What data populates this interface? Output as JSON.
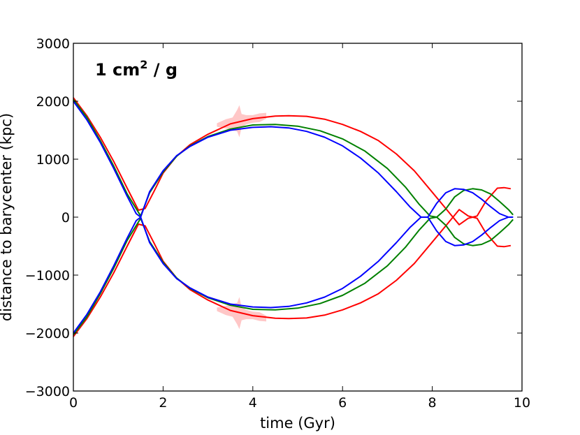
{
  "chart_data": {
    "type": "line",
    "annotation": {
      "base": "1 cm",
      "exponent": "2",
      "suffix": " / g"
    },
    "xlabel": "time (Gyr)",
    "ylabel": "distance to barycenter (kpc)",
    "xlim": [
      0,
      10
    ],
    "ylim": [
      -3000,
      3000
    ],
    "xticks": [
      0,
      2,
      4,
      6,
      8,
      10
    ],
    "xtick_labels": [
      "0",
      "2",
      "4",
      "6",
      "8",
      "10"
    ],
    "yticks": [
      -3000,
      -2000,
      -1000,
      0,
      1000,
      2000,
      3000
    ],
    "ytick_labels": [
      "−3000",
      "−2000",
      "−1000",
      "0",
      "1000",
      "2000",
      "3000"
    ],
    "grid": false,
    "series": [
      {
        "color": "#ff0000",
        "upper": {
          "x": [
            0,
            0.3,
            0.6,
            0.9,
            1.2,
            1.45,
            1.6,
            1.8,
            2.0,
            2.3,
            2.6,
            3.0,
            3.5,
            4.0,
            4.5,
            4.8,
            5.2,
            5.6,
            6.0,
            6.4,
            6.8,
            7.2,
            7.6,
            8.0,
            8.3,
            8.6,
            8.8,
            8.9,
            9.0,
            9.2,
            9.45,
            9.6,
            9.75
          ],
          "y": [
            2060,
            1750,
            1380,
            960,
            500,
            120,
            150,
            450,
            760,
            1050,
            1250,
            1430,
            1610,
            1700,
            1745,
            1750,
            1740,
            1690,
            1600,
            1480,
            1320,
            1090,
            800,
            430,
            150,
            -130,
            -20,
            0,
            20,
            280,
            500,
            510,
            490
          ]
        },
        "lower": {
          "x": [
            0,
            0.3,
            0.6,
            0.9,
            1.2,
            1.45,
            1.6,
            1.8,
            2.0,
            2.3,
            2.6,
            3.0,
            3.5,
            4.0,
            4.5,
            4.8,
            5.2,
            5.6,
            6.0,
            6.4,
            6.8,
            7.2,
            7.6,
            8.0,
            8.3,
            8.6,
            8.8,
            8.9,
            9.0,
            9.2,
            9.45,
            9.6,
            9.75
          ],
          "y": [
            -2060,
            -1750,
            -1380,
            -960,
            -500,
            -120,
            -150,
            -450,
            -760,
            -1050,
            -1250,
            -1430,
            -1610,
            -1700,
            -1745,
            -1750,
            -1740,
            -1690,
            -1600,
            -1480,
            -1320,
            -1090,
            -800,
            -430,
            -150,
            130,
            20,
            0,
            -20,
            -280,
            -500,
            -510,
            -490
          ]
        }
      },
      {
        "color": "#008000",
        "upper": {
          "x": [
            0,
            0.3,
            0.6,
            0.9,
            1.2,
            1.5,
            1.7,
            2.0,
            2.3,
            2.6,
            3.0,
            3.5,
            4.0,
            4.5,
            5.0,
            5.5,
            6.0,
            6.5,
            7.0,
            7.4,
            7.7,
            7.95,
            8.1,
            8.3,
            8.5,
            8.7,
            8.9,
            9.1,
            9.3,
            9.5,
            9.7,
            9.8
          ],
          "y": [
            2030,
            1720,
            1320,
            880,
            400,
            20,
            420,
            780,
            1050,
            1230,
            1390,
            1520,
            1590,
            1600,
            1570,
            1490,
            1350,
            1140,
            840,
            520,
            230,
            20,
            0,
            140,
            350,
            460,
            490,
            470,
            400,
            270,
            130,
            40
          ]
        },
        "lower": {
          "x": [
            0,
            0.3,
            0.6,
            0.9,
            1.2,
            1.5,
            1.7,
            2.0,
            2.3,
            2.6,
            3.0,
            3.5,
            4.0,
            4.5,
            5.0,
            5.5,
            6.0,
            6.5,
            7.0,
            7.4,
            7.7,
            7.95,
            8.1,
            8.3,
            8.5,
            8.7,
            8.9,
            9.1,
            9.3,
            9.5,
            9.7,
            9.8
          ],
          "y": [
            -2030,
            -1720,
            -1320,
            -880,
            -400,
            -20,
            -420,
            -780,
            -1050,
            -1230,
            -1390,
            -1520,
            -1590,
            -1600,
            -1570,
            -1490,
            -1350,
            -1140,
            -840,
            -520,
            -230,
            -20,
            0,
            -140,
            -350,
            -460,
            -490,
            -470,
            -400,
            -270,
            -130,
            -40
          ]
        }
      },
      {
        "color": "#0000ff",
        "upper": {
          "x": [
            0,
            0.3,
            0.6,
            0.9,
            1.2,
            1.4,
            1.5,
            1.7,
            2.0,
            2.3,
            2.6,
            3.0,
            3.5,
            4.0,
            4.4,
            4.8,
            5.2,
            5.6,
            6.0,
            6.4,
            6.8,
            7.2,
            7.5,
            7.75,
            7.9,
            8.1,
            8.3,
            8.5,
            8.7,
            8.9,
            9.1,
            9.3,
            9.5,
            9.7,
            9.8
          ],
          "y": [
            2000,
            1680,
            1290,
            840,
            360,
            60,
            0,
            440,
            800,
            1060,
            1220,
            1380,
            1500,
            1550,
            1560,
            1540,
            1480,
            1380,
            1230,
            1020,
            760,
            440,
            180,
            0,
            0,
            240,
            420,
            490,
            480,
            420,
            310,
            180,
            60,
            0,
            0
          ]
        },
        "lower": {
          "x": [
            0,
            0.3,
            0.6,
            0.9,
            1.2,
            1.4,
            1.5,
            1.7,
            2.0,
            2.3,
            2.6,
            3.0,
            3.5,
            4.0,
            4.4,
            4.8,
            5.2,
            5.6,
            6.0,
            6.4,
            6.8,
            7.2,
            7.5,
            7.75,
            7.9,
            8.1,
            8.3,
            8.5,
            8.7,
            8.9,
            9.1,
            9.3,
            9.5,
            9.7,
            9.8
          ],
          "y": [
            -2000,
            -1680,
            -1290,
            -840,
            -360,
            -60,
            0,
            -440,
            -800,
            -1060,
            -1220,
            -1380,
            -1500,
            -1550,
            -1560,
            -1540,
            -1480,
            -1380,
            -1230,
            -1020,
            -760,
            -440,
            -180,
            0,
            0,
            -240,
            -420,
            -490,
            -480,
            -420,
            -310,
            -180,
            -60,
            0,
            0
          ]
        }
      }
    ],
    "uncertainty_band": {
      "color": "#ff9999",
      "upper": {
        "x": [
          3.2,
          3.4,
          3.55,
          3.65,
          3.7,
          3.75,
          3.85,
          4.0,
          4.15,
          4.3
        ],
        "y_lo": [
          1560,
          1530,
          1500,
          1480,
          1380,
          1550,
          1600,
          1630,
          1640,
          1700
        ],
        "y_hi": [
          1620,
          1690,
          1720,
          1850,
          1930,
          1780,
          1760,
          1760,
          1790,
          1800
        ]
      },
      "lower": {
        "x": [
          3.2,
          3.4,
          3.55,
          3.65,
          3.7,
          3.75,
          3.85,
          4.0,
          4.15,
          4.3
        ],
        "y_lo": [
          -1620,
          -1690,
          -1720,
          -1850,
          -1930,
          -1780,
          -1760,
          -1760,
          -1790,
          -1800
        ],
        "y_hi": [
          -1560,
          -1530,
          -1500,
          -1480,
          -1380,
          -1550,
          -1600,
          -1630,
          -1640,
          -1700
        ]
      }
    }
  }
}
